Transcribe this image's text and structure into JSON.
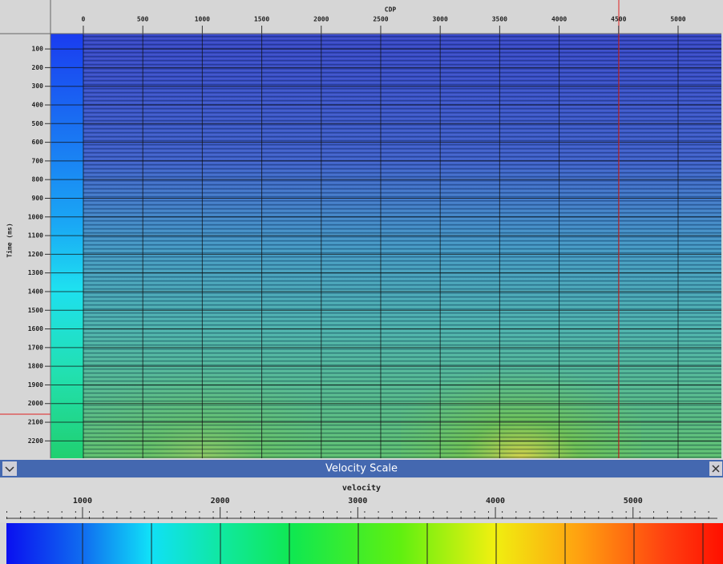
{
  "section": {
    "x_axis": {
      "label": "CDP",
      "lim": [
        -276,
        5364
      ],
      "ticks": [
        0,
        500,
        1000,
        1500,
        2000,
        2500,
        3000,
        3500,
        4000,
        4500,
        5000
      ]
    },
    "y_axis": {
      "label": "Time (ms)",
      "lim": [
        18,
        2293
      ],
      "ticks": [
        100,
        200,
        300,
        400,
        500,
        600,
        700,
        800,
        900,
        1000,
        1100,
        1200,
        1300,
        1400,
        1500,
        1600,
        1700,
        1800,
        1900,
        2000,
        2100,
        2200
      ]
    }
  },
  "velocity_panel": {
    "title": "Velocity Scale",
    "label": "velocity",
    "lim": [
      447,
      5613
    ],
    "ticks": [
      1000,
      2000,
      3000,
      4000,
      5000
    ]
  }
}
